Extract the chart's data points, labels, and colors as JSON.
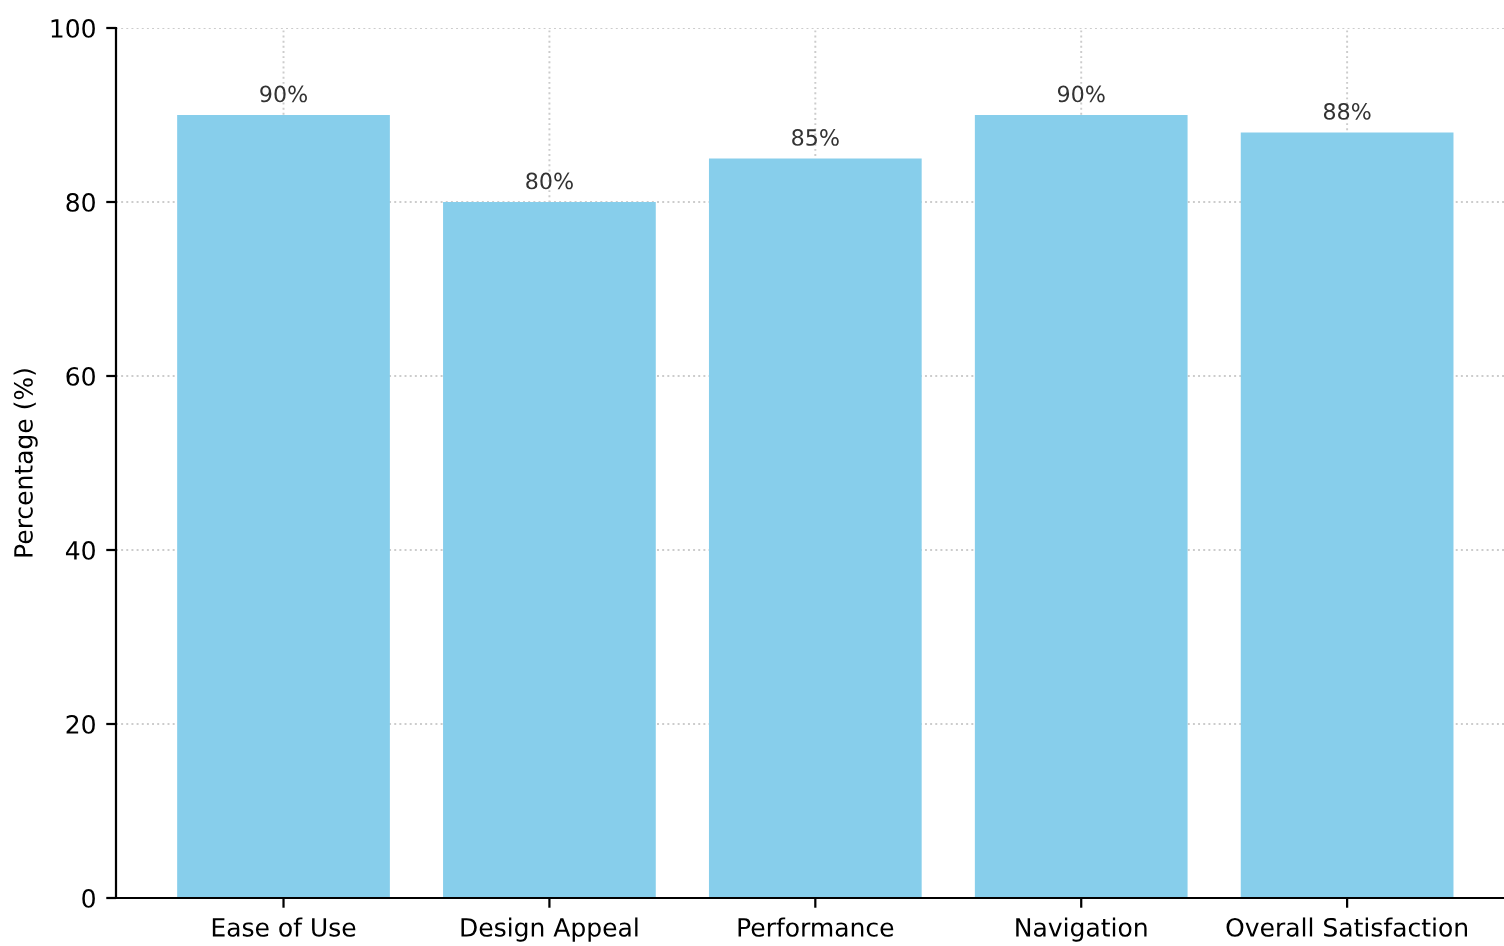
{
  "chart_data": {
    "type": "bar",
    "ylabel": "Percentage (%)",
    "categories": [
      "Ease of Use",
      "Design Appeal",
      "Performance",
      "Navigation",
      "Overall Satisfaction"
    ],
    "values": [
      90,
      80,
      85,
      90,
      88
    ],
    "color": "#87ceeb",
    "value_labels": [
      "90%",
      "80%",
      "85%",
      "90%",
      "88%"
    ],
    "ylim": [
      0,
      100
    ],
    "yticks": [
      0,
      20,
      40,
      60,
      80,
      100
    ],
    "grid": true
  }
}
